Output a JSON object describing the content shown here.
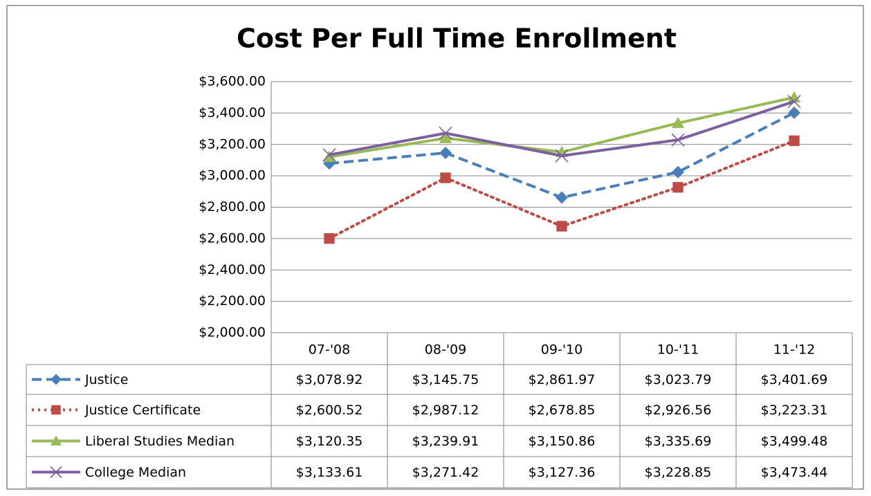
{
  "chart_data": {
    "type": "line",
    "title": "Cost Per Full Time Enrollment",
    "categories": [
      "07-'08",
      "08-'09",
      "09-'10",
      "10-'11",
      "11-'12"
    ],
    "series": [
      {
        "name": "Justice",
        "color": "#4a7ebb",
        "dash": "dashed",
        "marker": "diamond",
        "values": [
          3078.92,
          3145.75,
          2861.97,
          3023.79,
          3401.69
        ],
        "value_labels": [
          "$3,078.92",
          "$3,145.75",
          "$2,861.97",
          "$3,023.79",
          "$3,401.69"
        ]
      },
      {
        "name": "Justice Certificate",
        "color": "#be4b48",
        "dash": "dotted",
        "marker": "square",
        "values": [
          2600.52,
          2987.12,
          2678.85,
          2926.56,
          3223.31
        ],
        "value_labels": [
          "$2,600.52",
          "$2,987.12",
          "$2,678.85",
          "$2,926.56",
          "$3,223.31"
        ]
      },
      {
        "name": "Liberal Studies Median",
        "color": "#98b954",
        "dash": "solid",
        "marker": "triangle",
        "values": [
          3120.35,
          3239.91,
          3150.86,
          3335.69,
          3499.48
        ],
        "value_labels": [
          "$3,120.35",
          "$3,239.91",
          "$3,150.86",
          "$3,335.69",
          "$3,499.48"
        ]
      },
      {
        "name": "College Median",
        "color": "#7d5fa0",
        "dash": "solid",
        "marker": "x",
        "values": [
          3133.61,
          3271.42,
          3127.36,
          3228.85,
          3473.44
        ],
        "value_labels": [
          "$3,133.61",
          "$3,271.42",
          "$3,127.36",
          "$3,228.85",
          "$3,473.44"
        ]
      }
    ],
    "ylim": [
      2000,
      3600
    ],
    "yticks": [
      {
        "value": 2000,
        "label": "$2,000.00"
      },
      {
        "value": 2200,
        "label": "$2,200.00"
      },
      {
        "value": 2400,
        "label": "$2,400.00"
      },
      {
        "value": 2600,
        "label": "$2,600.00"
      },
      {
        "value": 2800,
        "label": "$2,800.00"
      },
      {
        "value": 3000,
        "label": "$3,000.00"
      },
      {
        "value": 3200,
        "label": "$3,200.00"
      },
      {
        "value": 3400,
        "label": "$3,400.00"
      },
      {
        "value": 3600,
        "label": "$3,600.00"
      }
    ],
    "grid": true
  }
}
